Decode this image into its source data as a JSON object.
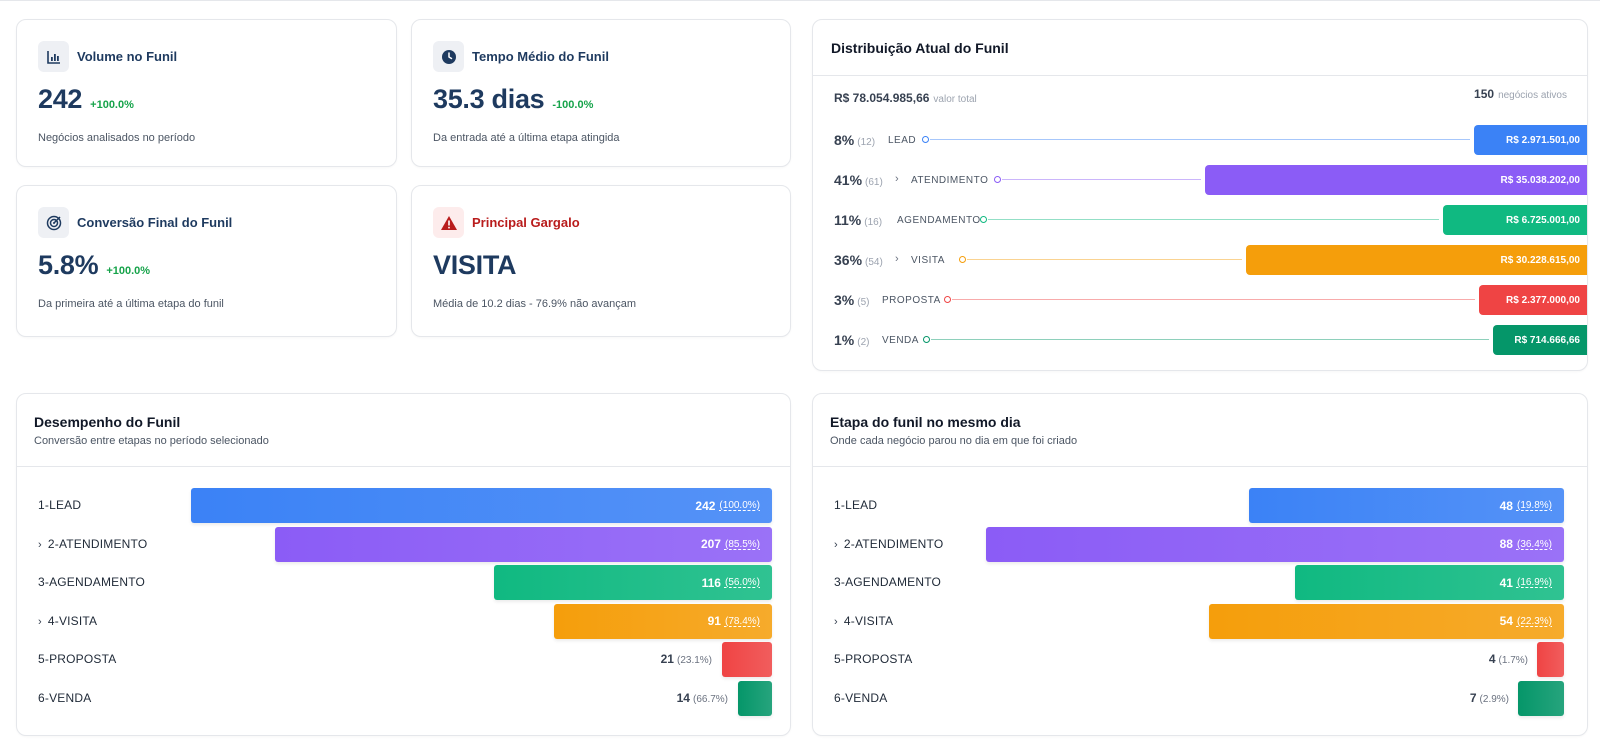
{
  "kpis": {
    "volume": {
      "title": "Volume no Funil",
      "value": "242",
      "delta": "+100.0%",
      "sub": "Negócios analisados no período",
      "icon": "bar-chart-icon"
    },
    "tempo": {
      "title": "Tempo Médio do Funil",
      "value": "35.3 dias",
      "delta": "-100.0%",
      "sub": "Da entrada até a última etapa atingida",
      "icon": "clock-icon"
    },
    "conversao": {
      "title": "Conversão Final do Funil",
      "value": "5.8%",
      "delta": "+100.0%",
      "sub": "Da primeira até a última etapa do funil",
      "icon": "target-icon"
    },
    "gargalo": {
      "title": "Principal Gargalo",
      "value": "VISITA",
      "sub": "Média de 10.2 dias - 76.9% não avançam",
      "icon": "warning-icon"
    }
  },
  "distribution": {
    "title": "Distribuição Atual do Funil",
    "total_value": "R$ 78.054.985,66",
    "total_label": "valor total",
    "active_count": "150",
    "active_label": "negócios ativos",
    "rows": [
      {
        "pct": "8%",
        "count": "(12)",
        "label": "LEAD",
        "chevron": false,
        "amount": "R$ 2.971.501,00",
        "color": "#3b82f6",
        "share": 0.038
      },
      {
        "pct": "41%",
        "count": "(61)",
        "label": "ATENDIMENTO",
        "chevron": true,
        "amount": "R$ 35.038.202,00",
        "color": "#8b5cf6",
        "share": 0.449
      },
      {
        "pct": "11%",
        "count": "(16)",
        "label": "AGENDAMENTO",
        "chevron": false,
        "amount": "R$ 6.725.001,00",
        "color": "#10b981",
        "share": 0.086
      },
      {
        "pct": "36%",
        "count": "(54)",
        "label": "VISITA",
        "chevron": true,
        "amount": "R$ 30.228.615,00",
        "color": "#f59e0b",
        "share": 0.387
      },
      {
        "pct": "3%",
        "count": "(5)",
        "label": "PROPOSTA",
        "chevron": false,
        "amount": "R$ 2.377.000,00",
        "color": "#ef4444",
        "share": 0.03
      },
      {
        "pct": "1%",
        "count": "(2)",
        "label": "VENDA",
        "chevron": false,
        "amount": "R$ 714.666,66",
        "color": "#059669",
        "share": 0.009
      }
    ]
  },
  "performance": {
    "title": "Desempenho do Funil",
    "subtitle": "Conversão entre etapas no período selecionado",
    "rows": [
      {
        "label": "1-LEAD",
        "chevron": false,
        "value": 242,
        "value_text": "242",
        "pct": "(100.0%)",
        "color": "#3b82f6"
      },
      {
        "label": "2-ATENDIMENTO",
        "chevron": true,
        "value": 207,
        "value_text": "207",
        "pct": "(85.5%)",
        "color": "#8b5cf6"
      },
      {
        "label": "3-AGENDAMENTO",
        "chevron": false,
        "value": 116,
        "value_text": "116",
        "pct": "(56.0%)",
        "color": "#10b981"
      },
      {
        "label": "4-VISITA",
        "chevron": true,
        "value": 91,
        "value_text": "91",
        "pct": "(78.4%)",
        "color": "#f59e0b"
      },
      {
        "label": "5-PROPOSTA",
        "chevron": false,
        "value": 21,
        "value_text": "21",
        "pct": "(23.1%)",
        "color": "#ef4444"
      },
      {
        "label": "6-VENDA",
        "chevron": false,
        "value": 14,
        "value_text": "14",
        "pct": "(66.7%)",
        "color": "#059669"
      }
    ]
  },
  "sameday": {
    "title": "Etapa do funil no mesmo dia",
    "subtitle": "Onde cada negócio parou no dia em que foi criado",
    "rows": [
      {
        "label": "1-LEAD",
        "chevron": false,
        "value": 48,
        "value_text": "48",
        "pct": "(19.8%)",
        "color": "#3b82f6"
      },
      {
        "label": "2-ATENDIMENTO",
        "chevron": true,
        "value": 88,
        "value_text": "88",
        "pct": "(36.4%)",
        "color": "#8b5cf6"
      },
      {
        "label": "3-AGENDAMENTO",
        "chevron": false,
        "value": 41,
        "value_text": "41",
        "pct": "(16.9%)",
        "color": "#10b981"
      },
      {
        "label": "4-VISITA",
        "chevron": true,
        "value": 54,
        "value_text": "54",
        "pct": "(22.3%)",
        "color": "#f59e0b"
      },
      {
        "label": "5-PROPOSTA",
        "chevron": false,
        "value": 4,
        "value_text": "4",
        "pct": "(1.7%)",
        "color": "#ef4444"
      },
      {
        "label": "6-VENDA",
        "chevron": false,
        "value": 7,
        "value_text": "7",
        "pct": "(2.9%)",
        "color": "#059669"
      }
    ]
  }
}
